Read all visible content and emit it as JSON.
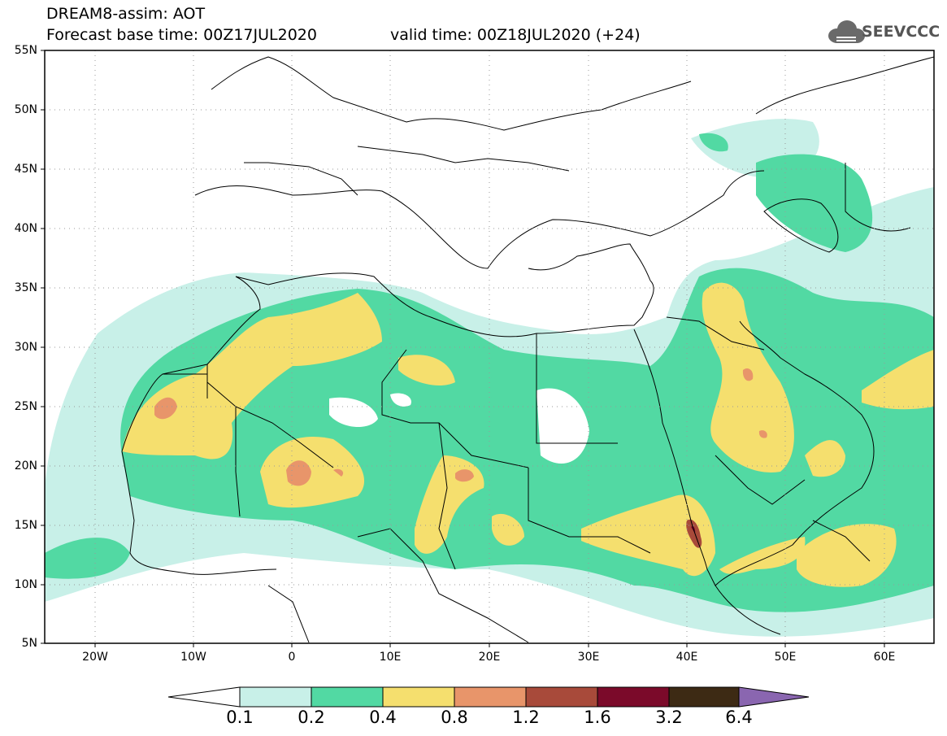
{
  "header": {
    "model_line": "DREAM8-assim: AOT",
    "base_time": "Forecast base time: 00Z17JUL2020",
    "valid_time": "valid time: 00Z18JUL2020 (+24)",
    "logo_text": "SEEVCCC"
  },
  "map": {
    "extent": {
      "lon": [
        -25,
        65
      ],
      "lat": [
        5,
        55
      ]
    },
    "lat_labels": [
      "55N",
      "50N",
      "45N",
      "40N",
      "35N",
      "30N",
      "25N",
      "20N",
      "15N",
      "10N",
      "5N"
    ],
    "lon_labels": [
      "20W",
      "10W",
      "0",
      "10E",
      "20E",
      "30E",
      "40E",
      "50E",
      "60E"
    ],
    "grid": true
  },
  "colorbar": {
    "labels": [
      "0.1",
      "0.2",
      "0.4",
      "0.8",
      "1.2",
      "1.6",
      "3.2",
      "6.4"
    ],
    "colors": [
      "#c8f0e8",
      "#52d9a3",
      "#f5df6e",
      "#e8956a",
      "#a84a3a",
      "#7b0a2a",
      "#3d2a14",
      "#8a66b0"
    ],
    "extend": "both"
  }
}
